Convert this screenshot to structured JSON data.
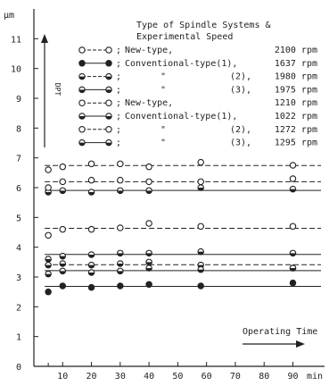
{
  "chart_data": {
    "type": "line",
    "y_unit_label": "μm",
    "x_unit_label": "min",
    "y_axis_vertical_label": "DPT",
    "x_ticks": [
      10,
      20,
      30,
      40,
      50,
      60,
      70,
      80,
      90
    ],
    "x_tick_labels": [
      "10",
      "20",
      "30",
      "40",
      "50",
      "60",
      "70",
      "80",
      "90"
    ],
    "y_ticks": [
      0,
      1,
      2,
      3,
      4,
      5,
      6,
      7,
      8,
      9,
      10,
      11
    ],
    "y_tick_labels": [
      "0",
      "1",
      "2",
      "3",
      "4",
      "5",
      "6",
      "7",
      "8",
      "9",
      "10",
      "11"
    ],
    "xlim": [
      0,
      101
    ],
    "ylim": [
      0,
      12
    ],
    "grid": false,
    "legend_title": "Type of Spindle Systems & Experimental Speed",
    "legend_position": "top-right",
    "annotation": "Operating Time",
    "series": [
      {
        "label_parts": [
          "New-type,",
          "2100 rpm"
        ],
        "marker": "open",
        "style": "dashed",
        "x": [
          5,
          10,
          20,
          30,
          40,
          58,
          90
        ],
        "y": [
          6.6,
          6.7,
          6.8,
          6.8,
          6.7,
          6.85,
          6.75
        ]
      },
      {
        "label_parts": [
          "Conventional-type(1),",
          "1637 rpm"
        ],
        "marker": "filled",
        "style": "solid",
        "x": [
          5,
          10,
          20,
          30,
          40,
          58,
          90
        ],
        "y": [
          2.5,
          2.7,
          2.65,
          2.7,
          2.75,
          2.7,
          2.8
        ]
      },
      {
        "label_parts": [
          "\"",
          "(2),",
          "1980 rpm"
        ],
        "marker": "half",
        "style": "dashed",
        "x": [
          5,
          10,
          20,
          30,
          40,
          58,
          90
        ],
        "y": [
          3.4,
          3.45,
          3.4,
          3.45,
          3.5,
          3.4,
          3.3
        ]
      },
      {
        "label_parts": [
          "\"",
          "(3),",
          "1975 rpm"
        ],
        "marker": "half",
        "style": "solid",
        "x": [
          5,
          10,
          20,
          30,
          40,
          58,
          90
        ],
        "y": [
          3.1,
          3.2,
          3.15,
          3.2,
          3.3,
          3.25,
          3.3
        ]
      },
      {
        "label_parts": [
          "New-type,",
          "1210 rpm"
        ],
        "marker": "open",
        "style": "dashed",
        "x": [
          5,
          10,
          20,
          30,
          40,
          58,
          90
        ],
        "y": [
          4.4,
          4.6,
          4.6,
          4.65,
          4.8,
          4.7,
          4.7
        ]
      },
      {
        "label_parts": [
          "Conventional-type(1),",
          "1022 rpm"
        ],
        "marker": "half",
        "style": "solid",
        "x": [
          5,
          10,
          20,
          30,
          40,
          58,
          90
        ],
        "y": [
          5.85,
          5.9,
          5.85,
          5.9,
          5.9,
          6.0,
          5.95
        ]
      },
      {
        "label_parts": [
          "\"",
          "(2),",
          "1272 rpm"
        ],
        "marker": "open",
        "style": "dashed",
        "x": [
          5,
          10,
          20,
          30,
          40,
          58,
          90
        ],
        "y": [
          6.0,
          6.2,
          6.25,
          6.25,
          6.2,
          6.2,
          6.3
        ]
      },
      {
        "label_parts": [
          "\"",
          "(3),",
          "1295 rpm"
        ],
        "marker": "half",
        "style": "solid",
        "x": [
          5,
          10,
          20,
          30,
          40,
          58,
          90
        ],
        "y": [
          3.6,
          3.7,
          3.75,
          3.8,
          3.8,
          3.85,
          3.8
        ]
      }
    ]
  }
}
